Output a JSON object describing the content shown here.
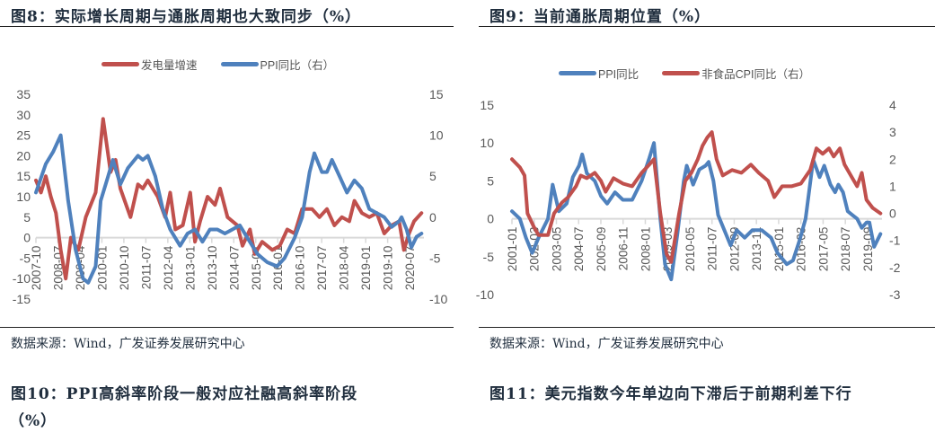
{
  "figures": {
    "fig8": {
      "title": "图8：实际增长周期与通胀周期也大致同步（%）",
      "source": "数据来源：Wind，广发证券发展研究中心"
    },
    "fig9": {
      "title": "图9：当前通胀周期位置（%）",
      "source": "数据来源：Wind，广发证券发展研究中心"
    },
    "fig10": {
      "title_line1": "图10：PPI高斜率阶段一般对应社融高斜率阶段",
      "title_line2": "（%）"
    },
    "fig11": {
      "title": "图11：美元指数今年单边向下滞后于前期利差下行"
    }
  },
  "colors": {
    "red": "#c0504d",
    "blue": "#4f81bd",
    "axis": "#d9d9d9",
    "title": "#1f2d3d"
  },
  "chart_data": [
    {
      "id": "fig8",
      "type": "line",
      "title": "实际增长周期与通胀周期也大致同步（%）",
      "legend_position": "top-center",
      "grid": false,
      "xlim": [
        2007.75,
        2020.75
      ],
      "x_tick_labels": [
        "2007-10",
        "2008-07",
        "2009-04",
        "2010-01",
        "2010-10",
        "2011-07",
        "2012-04",
        "2013-01",
        "2013-10",
        "2014-07",
        "2015-04",
        "2016-01",
        "2016-10",
        "2017-07",
        "2018-04",
        "2019-01",
        "2019-10",
        "2020-07"
      ],
      "y_left": {
        "ticks": [
          35,
          30,
          25,
          20,
          15,
          10,
          5,
          0,
          -5,
          -10,
          -15
        ],
        "lim": [
          -15,
          35
        ]
      },
      "y_right": {
        "ticks": [
          15,
          10,
          5,
          0,
          -5,
          -10
        ],
        "lim": [
          -10,
          15
        ]
      },
      "series": [
        {
          "name": "发电量增速",
          "axis": "left",
          "color": "#c0504d",
          "x": [
            2007.75,
            2007.92,
            2008.08,
            2008.25,
            2008.42,
            2008.58,
            2008.75,
            2008.92,
            2009.0,
            2009.17,
            2009.42,
            2009.75,
            2010.0,
            2010.25,
            2010.42,
            2010.58,
            2010.92,
            2011.17,
            2011.33,
            2011.5,
            2011.83,
            2012.08,
            2012.25,
            2012.42,
            2012.67,
            2012.92,
            2013.08,
            2013.25,
            2013.5,
            2013.75,
            2013.92,
            2014.17,
            2014.5,
            2014.67,
            2014.92,
            2015.08,
            2015.33,
            2015.67,
            2015.92,
            2016.17,
            2016.42,
            2016.67,
            2017.0,
            2017.25,
            2017.5,
            2017.75,
            2018.0,
            2018.25,
            2018.42,
            2018.67,
            2018.92,
            2019.17,
            2019.42,
            2019.67,
            2019.92,
            2020.08,
            2020.25,
            2020.42,
            2020.67
          ],
          "values": [
            14,
            11,
            15,
            10,
            6,
            -3,
            -10,
            0,
            -1,
            -3,
            5,
            11,
            29,
            16,
            19,
            12,
            5,
            13,
            12,
            14,
            10,
            5,
            11,
            2,
            3,
            11,
            -1,
            4,
            10,
            8,
            12,
            5,
            3,
            -2,
            2,
            -4,
            -1,
            -3,
            -2,
            2,
            1,
            7,
            7,
            5,
            7,
            3,
            5,
            4,
            9,
            6,
            5,
            6,
            1,
            3,
            4,
            -3,
            1,
            4,
            6
          ]
        },
        {
          "name": "PPI同比（右）",
          "axis": "right",
          "color": "#4f81bd",
          "x": [
            2007.75,
            2008.08,
            2008.33,
            2008.58,
            2008.83,
            2009.08,
            2009.33,
            2009.5,
            2009.75,
            2009.92,
            2010.17,
            2010.33,
            2010.58,
            2010.83,
            2011.17,
            2011.33,
            2011.5,
            2011.75,
            2012.0,
            2012.25,
            2012.58,
            2012.83,
            2013.08,
            2013.33,
            2013.58,
            2013.83,
            2014.08,
            2014.33,
            2014.58,
            2014.83,
            2015.17,
            2015.5,
            2015.83,
            2016.08,
            2016.42,
            2016.67,
            2016.92,
            2017.08,
            2017.33,
            2017.5,
            2017.67,
            2017.92,
            2018.17,
            2018.42,
            2018.67,
            2018.92,
            2019.17,
            2019.42,
            2019.67,
            2019.92,
            2020.0,
            2020.17,
            2020.33,
            2020.5,
            2020.67
          ],
          "values": [
            3,
            6.5,
            8,
            10,
            2,
            -4,
            -7.5,
            -8,
            -6,
            2,
            5,
            7,
            4,
            6,
            7.5,
            7,
            7.5,
            5,
            1,
            -1.5,
            -3.5,
            -2,
            -1.5,
            -3,
            -1.5,
            -1.5,
            -2,
            -1.5,
            -1,
            -2.5,
            -4.5,
            -5.5,
            -6,
            -5,
            -2.5,
            0,
            5.5,
            7.8,
            5.5,
            5.5,
            7,
            5,
            3,
            4.5,
            3.5,
            1,
            0.5,
            0,
            -1.2,
            -0.5,
            0,
            -1.5,
            -3.7,
            -2.4,
            -2
          ]
        }
      ]
    },
    {
      "id": "fig9",
      "type": "line",
      "title": "当前通胀周期位置（%）",
      "legend_position": "top-center",
      "grid": false,
      "xlim": [
        2001.0,
        2020.75
      ],
      "x_tick_labels": [
        "2001-01",
        "2002-03",
        "2003-05",
        "2004-07",
        "2005-09",
        "2006-11",
        "2008-01",
        "2009-03",
        "2010-05",
        "2011-07",
        "2012-09",
        "2013-11",
        "2015-01",
        "2016-03",
        "2017-05",
        "2018-07",
        "2019-09"
      ],
      "y_left": {
        "ticks": [
          15,
          10,
          5,
          0,
          -5,
          -10
        ],
        "lim": [
          -10,
          15
        ]
      },
      "y_right": {
        "ticks": [
          4,
          3,
          2,
          1,
          0,
          -1,
          -2,
          -3
        ],
        "lim": [
          -3,
          4
        ]
      },
      "series": [
        {
          "name": "PPI同比",
          "axis": "left",
          "color": "#4f81bd",
          "x": [
            2001.0,
            2001.42,
            2001.75,
            2002.08,
            2002.42,
            2002.92,
            2003.17,
            2003.5,
            2003.92,
            2004.25,
            2004.58,
            2004.75,
            2005.0,
            2005.42,
            2005.75,
            2006.08,
            2006.5,
            2006.92,
            2007.42,
            2007.92,
            2008.33,
            2008.58,
            2008.92,
            2009.17,
            2009.5,
            2009.83,
            2010.17,
            2010.33,
            2010.67,
            2011.0,
            2011.33,
            2011.5,
            2011.75,
            2012.0,
            2012.42,
            2012.67,
            2013.0,
            2013.42,
            2013.83,
            2014.33,
            2014.83,
            2015.17,
            2015.67,
            2016.0,
            2016.33,
            2016.67,
            2017.08,
            2017.42,
            2017.67,
            2018.0,
            2018.25,
            2018.42,
            2018.67,
            2018.92,
            2019.17,
            2019.42,
            2019.67,
            2019.92,
            2020.08,
            2020.33,
            2020.67
          ],
          "values": [
            1,
            0,
            -2.5,
            -4.5,
            -2.5,
            0,
            4.5,
            1,
            2,
            5.5,
            7,
            8.5,
            6,
            5,
            3,
            2,
            3.5,
            2.5,
            2.5,
            5,
            8,
            10,
            0,
            -6,
            -8,
            -2,
            5,
            7,
            4.5,
            6.5,
            7,
            7.5,
            5,
            0.5,
            -2,
            -3.5,
            -1.5,
            -2.5,
            -1.5,
            -1.5,
            -2.5,
            -4.5,
            -6,
            -5.5,
            -3,
            0,
            7.8,
            5.5,
            7,
            4.5,
            3.5,
            4.5,
            3.5,
            1,
            0.5,
            0,
            -1.2,
            -0.5,
            -0.5,
            -3.7,
            -2
          ]
        },
        {
          "name": "非食品CPI同比（右）",
          "axis": "right",
          "color": "#c0504d",
          "x": [
            2001.0,
            2001.42,
            2001.67,
            2001.83,
            2002.17,
            2002.42,
            2002.92,
            2003.25,
            2003.67,
            2004.0,
            2004.42,
            2004.67,
            2005.0,
            2005.42,
            2005.75,
            2006.0,
            2006.42,
            2006.92,
            2007.42,
            2007.92,
            2008.33,
            2008.58,
            2008.92,
            2009.25,
            2009.5,
            2009.92,
            2010.25,
            2010.58,
            2010.92,
            2011.17,
            2011.42,
            2011.67,
            2011.92,
            2012.25,
            2012.75,
            2013.25,
            2013.75,
            2014.17,
            2014.67,
            2015.0,
            2015.42,
            2015.92,
            2016.42,
            2016.92,
            2017.25,
            2017.58,
            2017.92,
            2018.17,
            2018.5,
            2018.75,
            2019.17,
            2019.42,
            2019.67,
            2019.92,
            2020.25,
            2020.67
          ],
          "values": [
            2,
            1.7,
            1.4,
            0,
            -0.5,
            -0.8,
            -0.8,
            0,
            0.4,
            0.6,
            1,
            1.4,
            1.3,
            1.5,
            1.2,
            0.8,
            1.3,
            1.1,
            1,
            1.5,
            1.8,
            2,
            0,
            -1.5,
            -1.8,
            0,
            1.2,
            1.5,
            2,
            2.5,
            2.8,
            3,
            2,
            1.4,
            1.6,
            1.5,
            1.8,
            1.5,
            1.2,
            0.6,
            1,
            1,
            1.1,
            1.6,
            2.4,
            2.2,
            2.4,
            2.1,
            2.4,
            1.8,
            1.3,
            1,
            1.5,
            0.5,
            0.2,
            0
          ]
        }
      ]
    }
  ]
}
